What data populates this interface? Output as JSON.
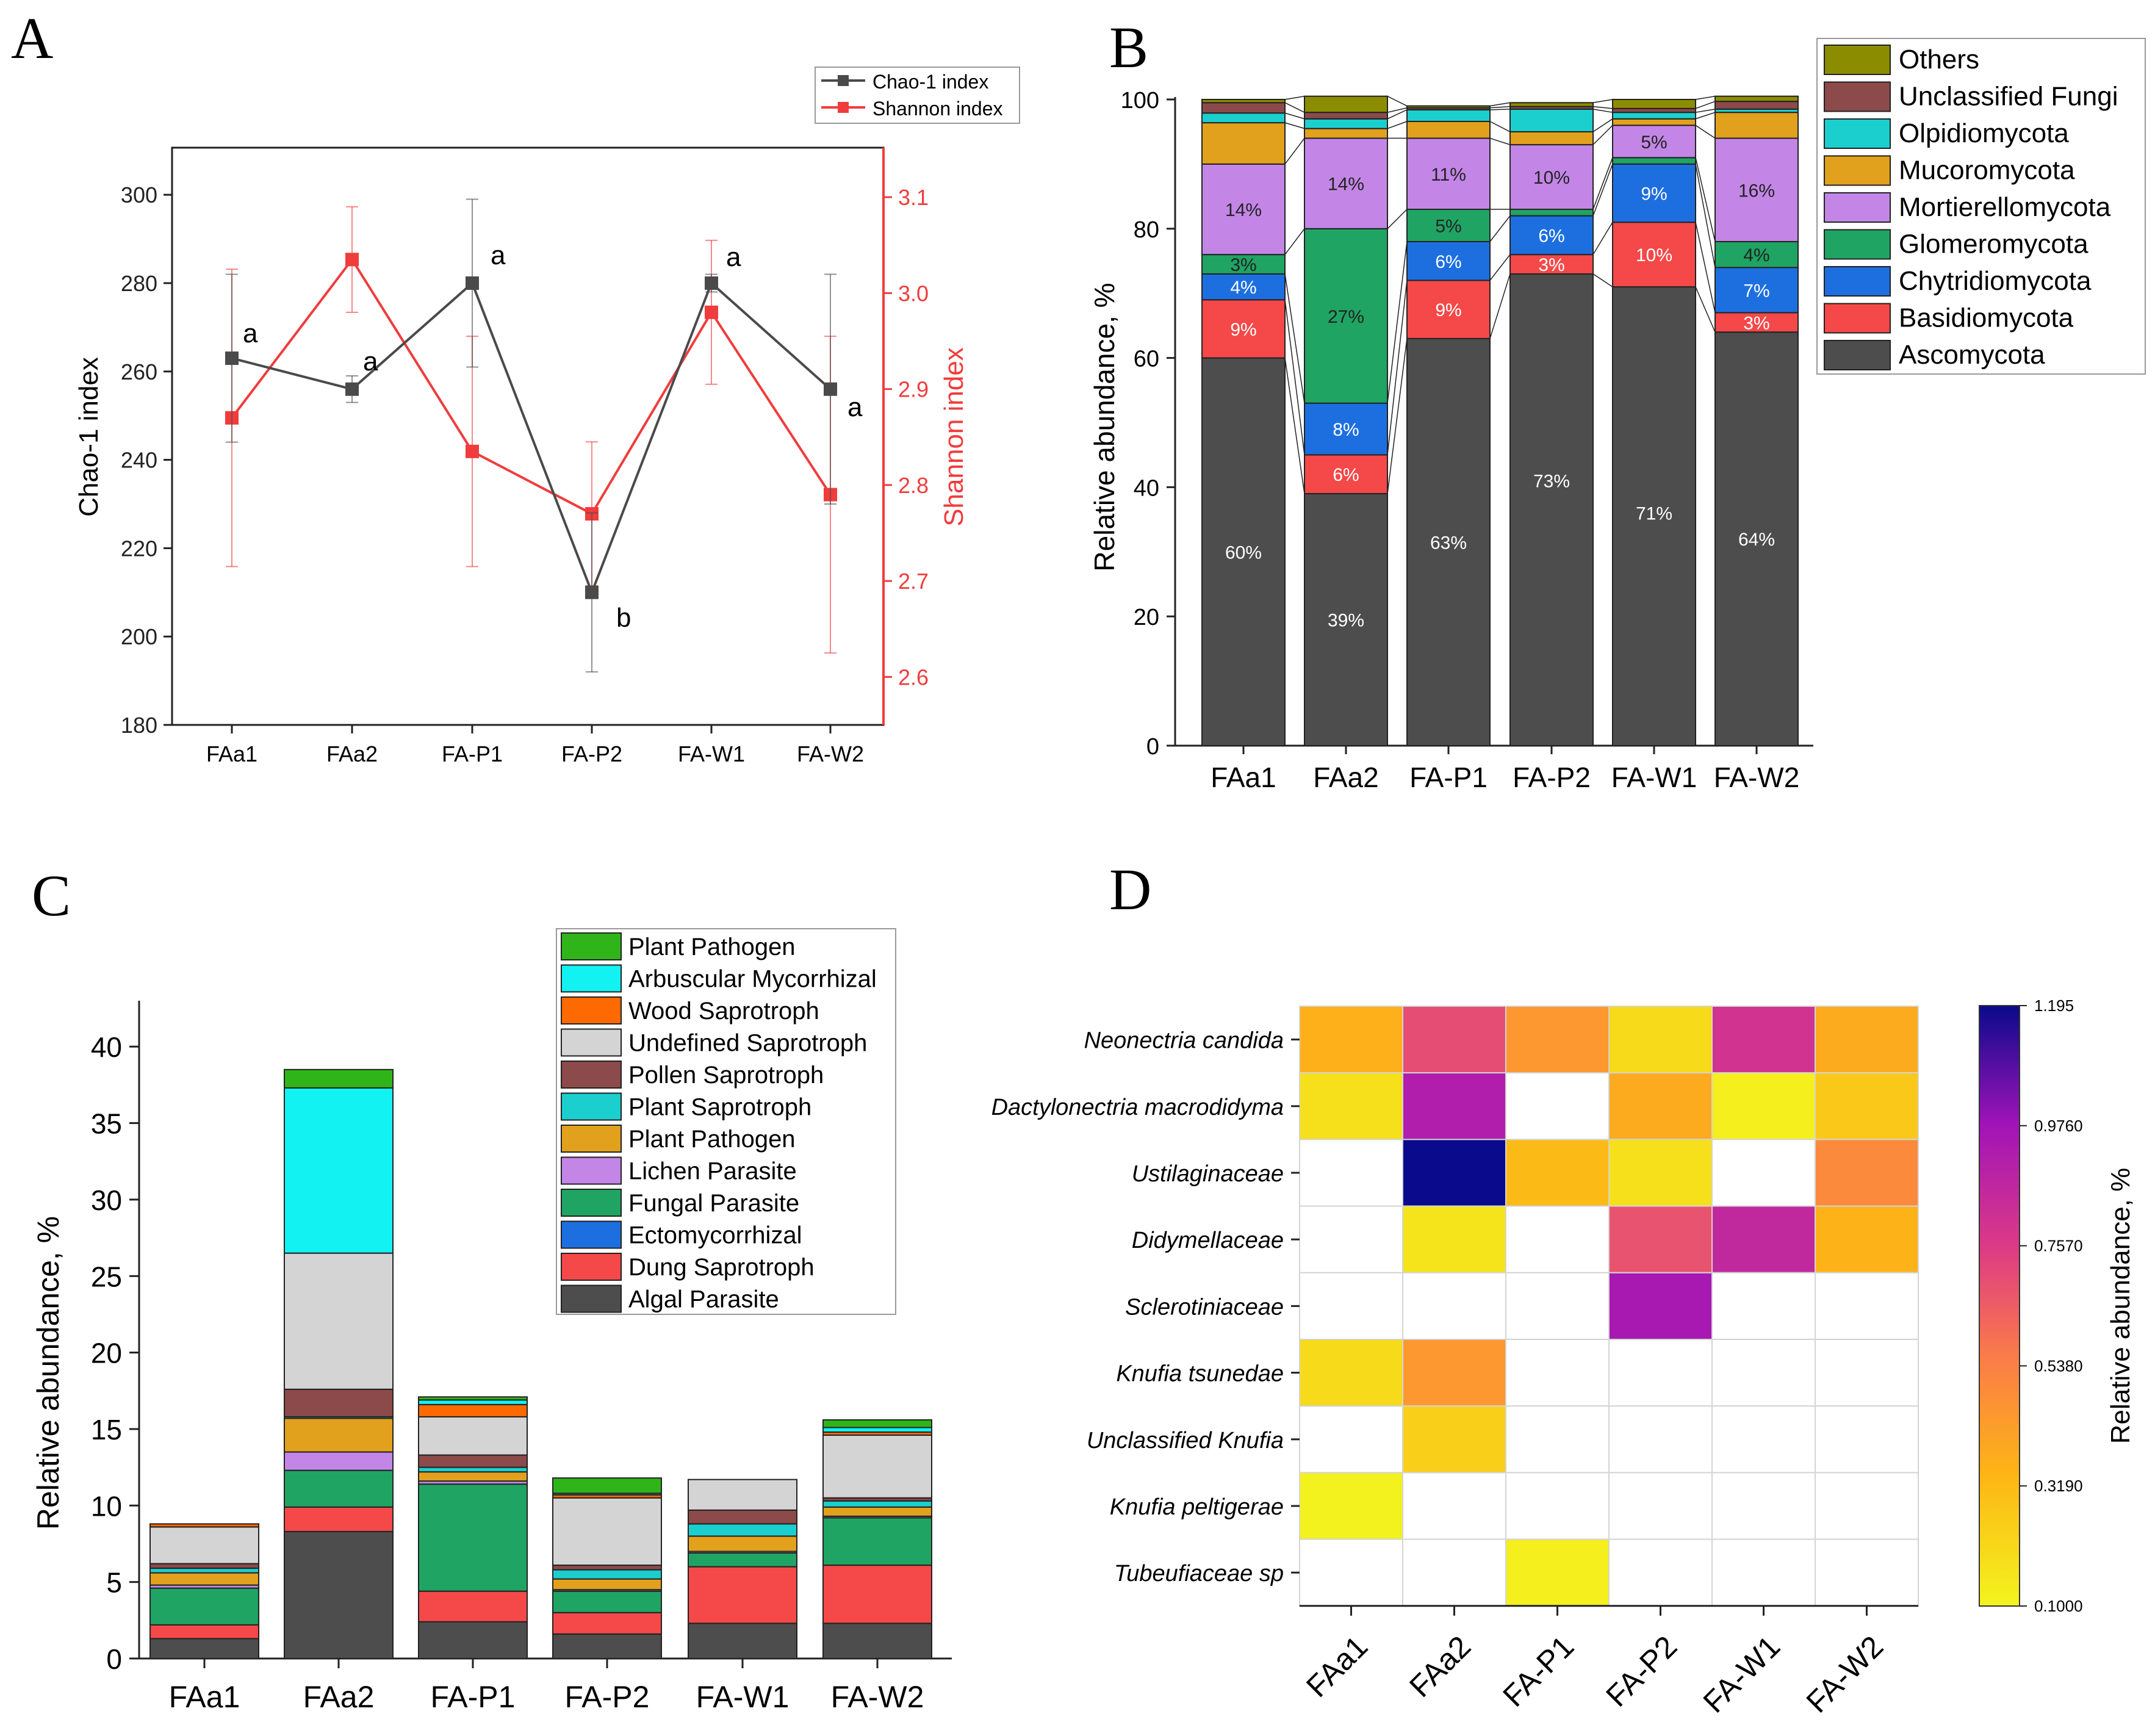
{
  "panels": {
    "a": "A",
    "b": "B",
    "c": "C",
    "d": "D"
  },
  "chart_data": [
    {
      "id": "A",
      "type": "line",
      "categories": [
        "FAa1",
        "FAa2",
        "FA-P1",
        "FA-P2",
        "FA-W1",
        "FA-W2"
      ],
      "legend": [
        "Chao-1 index",
        "Shannon index"
      ],
      "ylabel": "Chao-1 index",
      "ylabel_right": "Shannon index",
      "ylim": [
        180,
        310
      ],
      "ylim_right": [
        2.55,
        3.15
      ],
      "yticks": [
        "180",
        "200",
        "220",
        "240",
        "260",
        "280",
        "300"
      ],
      "yticks_right": [
        "2.6",
        "2.7",
        "2.8",
        "2.9",
        "3.0",
        "3.1"
      ],
      "series": [
        {
          "name": "Chao-1 index",
          "color": "#4a4a4a",
          "axis": "left",
          "values": [
            263,
            256,
            280,
            210,
            280,
            256
          ],
          "errors": [
            19,
            3,
            19,
            18,
            2,
            26
          ],
          "letters": [
            "a",
            "a",
            "a",
            "b",
            "a",
            "a"
          ]
        },
        {
          "name": "Shannon index",
          "color": "#f03c3c",
          "axis": "right",
          "values": [
            2.87,
            3.035,
            2.835,
            2.77,
            2.98,
            2.79
          ],
          "errors": [
            0.155,
            0.055,
            0.12,
            0.075,
            0.075,
            0.165
          ]
        }
      ]
    },
    {
      "id": "B",
      "type": "bar",
      "stacked": true,
      "categories": [
        "FAa1",
        "FAa2",
        "FA-P1",
        "FA-P2",
        "FA-W1",
        "FA-W2"
      ],
      "ylabel": "Relative abundance, %",
      "ylim": [
        0,
        100
      ],
      "yticks": [
        "0",
        "20",
        "40",
        "60",
        "80",
        "100"
      ],
      "series": [
        {
          "name": "Ascomycota",
          "color": "#4d4d4d",
          "values": [
            60,
            39,
            63,
            73,
            71,
            64
          ],
          "labels": [
            "60%",
            "39%",
            "63%",
            "73%",
            "71%",
            "64%"
          ]
        },
        {
          "name": "Basidiomycota",
          "color": "#f54848",
          "values": [
            9,
            6,
            9,
            3,
            10,
            3
          ],
          "labels": [
            "9%",
            "6%",
            "9%",
            "3%",
            "10%",
            "3%"
          ]
        },
        {
          "name": "Chytridiomycota",
          "color": "#1d6fe0",
          "values": [
            4,
            8,
            6,
            6,
            9,
            7
          ],
          "labels": [
            "4%",
            "8%",
            "6%",
            "6%",
            "9%",
            "7%"
          ]
        },
        {
          "name": "Glomeromycota",
          "color": "#1fa463",
          "values": [
            3,
            27,
            5,
            1,
            1,
            4
          ],
          "labels": [
            "3%",
            "27%",
            "5%",
            "1%",
            "1%",
            "4%"
          ]
        },
        {
          "name": "Mortierellomycota",
          "color": "#c386e6",
          "values": [
            14,
            14,
            11,
            10,
            5,
            16
          ],
          "labels": [
            "14%",
            "14%",
            "11%",
            "10%",
            "5%",
            "16%"
          ]
        },
        {
          "name": "Mucoromycota",
          "color": "#e2a11c",
          "values": [
            6.4,
            1.5,
            2.6,
            2.0,
            1.0,
            4.0
          ],
          "labels": [
            "",
            "",
            "",
            "",
            "",
            ""
          ]
        },
        {
          "name": "Olpidiomycota",
          "color": "#1ccfcf",
          "values": [
            1.5,
            1.5,
            1.8,
            3.5,
            1.0,
            0.5
          ],
          "labels": [
            "",
            "",
            "",
            "",
            "",
            ""
          ]
        },
        {
          "name": "Unclassified Fungi",
          "color": "#8c4a4a",
          "values": [
            1.6,
            1.0,
            0.3,
            0.4,
            0.6,
            1.2
          ],
          "labels": [
            "",
            "",
            "",
            "",
            "",
            ""
          ]
        },
        {
          "name": "Others",
          "color": "#8c8c00",
          "values": [
            0.5,
            2.5,
            0.3,
            0.6,
            1.4,
            0.8
          ],
          "labels": [
            "",
            "",
            "",
            "",
            "",
            ""
          ]
        }
      ],
      "legend_order": [
        "Others",
        "Unclassified Fungi",
        "Olpidiomycota",
        "Mucoromycota",
        "Mortierellomycota",
        "Glomeromycota",
        "Chytridiomycota",
        "Basidiomycota",
        "Ascomycota"
      ]
    },
    {
      "id": "C",
      "type": "bar",
      "stacked": true,
      "categories": [
        "FAa1",
        "FAa2",
        "FA-P1",
        "FA-P2",
        "FA-W1",
        "FA-W2"
      ],
      "ylabel": "Relative abundance, %",
      "ylim": [
        0,
        43
      ],
      "yticks": [
        "0",
        "5",
        "10",
        "15",
        "20",
        "25",
        "30",
        "35",
        "40"
      ],
      "series": [
        {
          "name": "Algal Parasite",
          "legend_label": "Algal Parasite",
          "color": "#4d4d4d",
          "values": [
            1.3,
            8.3,
            2.4,
            1.6,
            2.3,
            2.3
          ]
        },
        {
          "name": "Dung Saprotroph",
          "legend_label": "Dung Saprotroph",
          "color": "#f54848",
          "values": [
            0.9,
            1.6,
            2.0,
            1.4,
            3.7,
            3.8
          ]
        },
        {
          "name": "Ectomycorrhizal",
          "legend_label": " Ectomycorrhizal",
          "color": "#1d6fe0",
          "values": [
            0.0,
            0.0,
            0.0,
            0.0,
            0.0,
            0.0
          ]
        },
        {
          "name": "Fungal Parasite",
          "legend_label": "Fungal Parasite",
          "color": "#1fa463",
          "values": [
            2.4,
            2.4,
            7.0,
            1.4,
            0.9,
            3.1
          ]
        },
        {
          "name": "Lichen Parasite",
          "legend_label": "Lichen Parasite",
          "color": "#c386e6",
          "values": [
            0.2,
            1.2,
            0.2,
            0.1,
            0.1,
            0.1
          ]
        },
        {
          "name": "Plant Pathogen",
          "legend_label": "Plant Pathogen",
          "color": "#e2a11c",
          "values": [
            0.8,
            2.2,
            0.6,
            0.7,
            1.0,
            0.6
          ]
        },
        {
          "name": "Plant Saprotroph",
          "legend_label": "Plant Saprotroph",
          "color": "#1ccfcf",
          "values": [
            0.3,
            0.1,
            0.3,
            0.6,
            0.8,
            0.4
          ]
        },
        {
          "name": "Pollen Saprotroph",
          "legend_label": "Pollen Saprotroph",
          "color": "#8c4a4a",
          "values": [
            0.3,
            1.8,
            0.8,
            0.3,
            0.9,
            0.2
          ]
        },
        {
          "name": "Undefined Saprotroph",
          "legend_label": "Undefined Saprotroph",
          "color": "#d4d4d4",
          "values": [
            2.4,
            8.9,
            2.5,
            4.4,
            2.0,
            4.1
          ]
        },
        {
          "name": "Wood Saprotroph",
          "legend_label": "Wood Saprotroph",
          "color": "#ff6a00",
          "values": [
            0.2,
            0.0,
            0.8,
            0.2,
            0.0,
            0.2
          ]
        },
        {
          "name": "Arbuscular Mycorrhizal",
          "legend_label": "Arbuscular Mycorrhizal",
          "color": "#12f2f2",
          "values": [
            0.0,
            10.8,
            0.3,
            0.1,
            0.0,
            0.3
          ]
        },
        {
          "name": "Plant Pathogen (2)",
          "legend_label": "Plant Pathogen",
          "color": "#2fb51a",
          "values": [
            0.0,
            1.2,
            0.2,
            1.0,
            0.0,
            0.5
          ]
        }
      ],
      "legend_order": [
        "Plant Pathogen (2)",
        "Arbuscular Mycorrhizal",
        "Wood Saprotroph",
        "Undefined Saprotroph",
        "Pollen Saprotroph",
        "Plant Saprotroph",
        "Plant Pathogen",
        "Lichen Parasite",
        "Fungal Parasite",
        "Ectomycorrhizal",
        "Dung Saprotroph",
        "Algal Parasite"
      ]
    },
    {
      "id": "D",
      "type": "heatmap",
      "columns": [
        "FAa1",
        "FAa2",
        "FA-P1",
        "FA-P2",
        "FA-W1",
        "FA-W2"
      ],
      "rows": [
        "Neonectria candida",
        "Dactylonectria macrodidyma",
        "Ustilaginaceae",
        "Didymellaceae",
        "Sclerotiniaceae",
        "Knufia tsunedae",
        "Unclassified Knufia",
        "Knufia peltigerae",
        "Tubeufiaceae sp"
      ],
      "values": [
        [
          0.36,
          0.7,
          0.45,
          0.2,
          0.8,
          0.38
        ],
        [
          0.18,
          0.92,
          null,
          0.38,
          0.12,
          0.27
        ],
        [
          null,
          1.195,
          0.32,
          0.18,
          null,
          0.5
        ],
        [
          null,
          0.16,
          null,
          0.68,
          0.86,
          0.35
        ],
        [
          null,
          null,
          null,
          0.95,
          null,
          null
        ],
        [
          0.2,
          0.45,
          null,
          null,
          null,
          null
        ],
        [
          null,
          0.24,
          null,
          null,
          null,
          null
        ],
        [
          0.11,
          null,
          null,
          null,
          null,
          null
        ],
        [
          null,
          null,
          0.12,
          null,
          null,
          null
        ]
      ],
      "colorbar_label": "Relative abundance, %",
      "colorbar_ticks": [
        "0.1000",
        "0.3190",
        "0.5380",
        "0.7570",
        "0.9760",
        "1.195"
      ],
      "vmin": 0.1,
      "vmax": 1.195
    }
  ]
}
